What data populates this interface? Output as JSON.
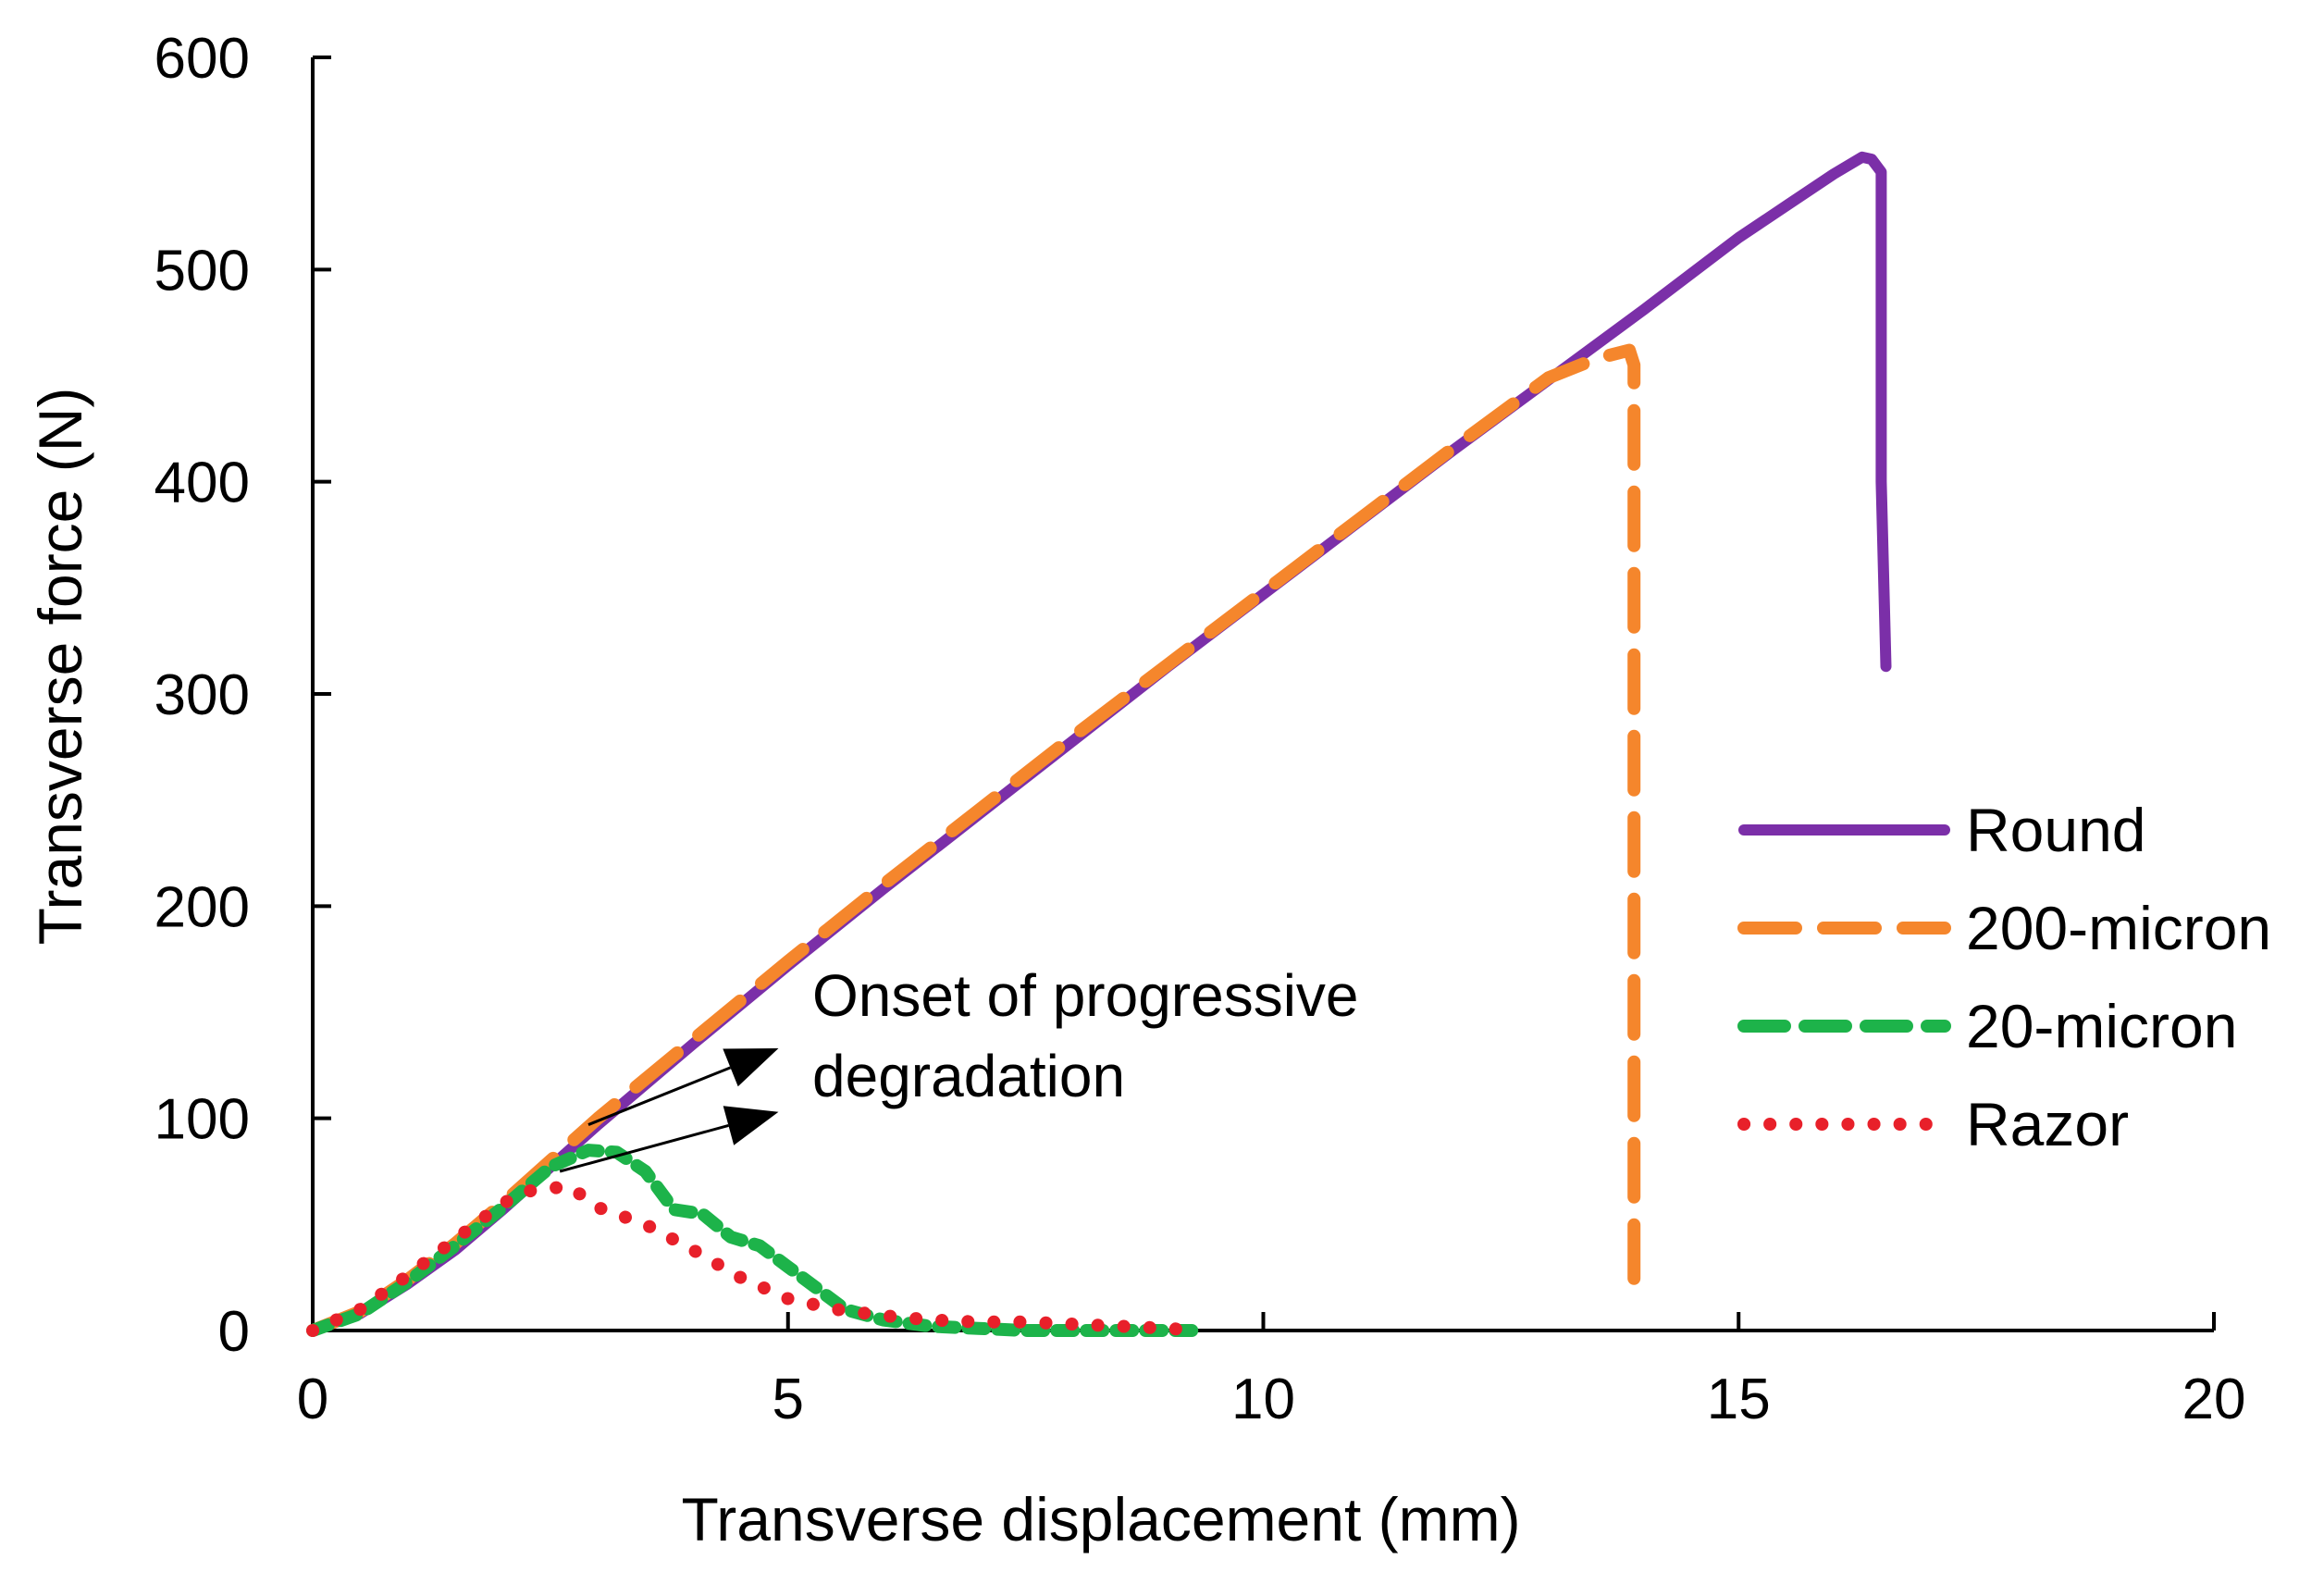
{
  "chart_data": {
    "type": "line",
    "title": "",
    "xlabel": "Transverse displacement (mm)",
    "ylabel": "Transverse force (N)",
    "xlim": [
      0,
      20
    ],
    "ylim": [
      0,
      600
    ],
    "xticks": [
      0,
      5,
      10,
      15,
      20
    ],
    "yticks": [
      0,
      100,
      200,
      300,
      400,
      500,
      600
    ],
    "grid": false,
    "legend_position": "right",
    "annotation": {
      "lines": [
        "Onset of progressive",
        "degradation"
      ],
      "arrows_from": [
        {
          "x": 2.9,
          "y": 97
        },
        {
          "x": 2.6,
          "y": 75
        }
      ],
      "arrows_to": [
        {
          "x": 4.9,
          "y": 133
        },
        {
          "x": 4.9,
          "y": 103
        }
      ]
    },
    "series": [
      {
        "name": "Round",
        "color": "#7B2FA8",
        "style": "solid",
        "x": [
          0,
          0.5,
          1,
          1.5,
          2,
          2.5,
          3,
          4,
          5,
          6,
          7,
          8,
          9,
          10,
          11,
          12,
          13,
          14,
          15,
          15.5,
          16,
          16.3,
          16.4,
          16.5,
          16.5,
          16.55
        ],
        "y": [
          0,
          8,
          22,
          38,
          57,
          77,
          97,
          135,
          172,
          208,
          243,
          278,
          313,
          347,
          381,
          415,
          448,
          481,
          515,
          530,
          545,
          553,
          552,
          546,
          400,
          313
        ]
      },
      {
        "name": "200-micron",
        "color": "#F5862C",
        "style": "dashed",
        "x": [
          0,
          0.5,
          1,
          1.5,
          2,
          2.5,
          3,
          4,
          5,
          6,
          7,
          8,
          9,
          10,
          11,
          12,
          13,
          13.5,
          13.85,
          13.9,
          13.9
        ],
        "y": [
          0,
          9,
          24,
          41,
          60,
          80,
          100,
          137,
          174,
          210,
          245,
          280,
          314,
          348,
          382,
          416,
          449,
          458,
          462,
          455,
          22
        ]
      },
      {
        "name": "20-micron",
        "color": "#1DB34A",
        "style": "dashed",
        "x": [
          0,
          0.5,
          1,
          1.5,
          2,
          2.5,
          2.9,
          3.2,
          3.5,
          3.8,
          4.1,
          4.4,
          4.7,
          5,
          5.3,
          5.6,
          6,
          6.5,
          7,
          7.5,
          8,
          8.5,
          9,
          9.3
        ],
        "y": [
          0,
          8,
          23,
          40,
          58,
          77,
          85,
          84,
          75,
          57,
          55,
          44,
          40,
          30,
          20,
          10,
          5,
          2,
          1,
          0,
          0,
          0,
          0,
          0
        ]
      },
      {
        "name": "Razor",
        "color": "#E8202A",
        "style": "dotted",
        "x": [
          0,
          0.5,
          1,
          1.5,
          2,
          2.3,
          2.7,
          3,
          3.5,
          4,
          4.5,
          5,
          5.5,
          6,
          6.5,
          7,
          7.5,
          8,
          8.5,
          9,
          9.3
        ],
        "y": [
          0,
          10,
          26,
          43,
          60,
          66,
          68,
          58,
          50,
          38,
          25,
          15,
          10,
          7,
          5,
          4,
          4,
          3,
          2,
          1,
          0
        ]
      }
    ]
  }
}
